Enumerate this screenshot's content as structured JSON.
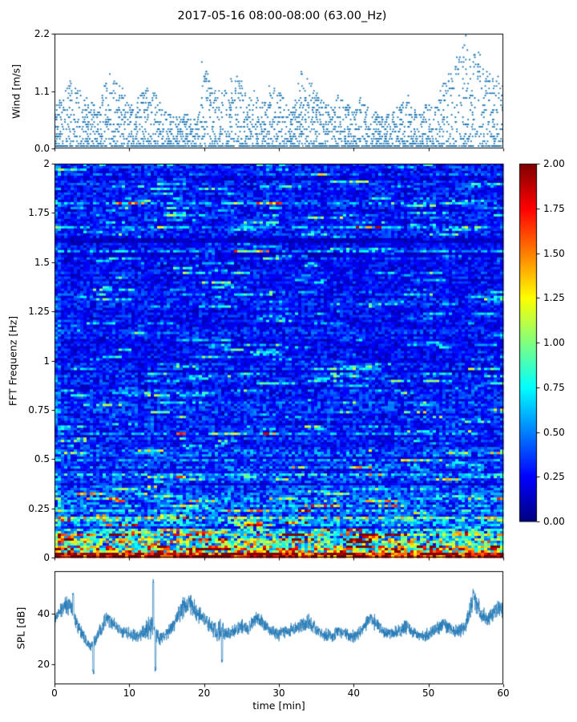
{
  "title": "2017-05-16 08:00-08:00 (63.00_Hz)",
  "accent_color": "#1f77b4",
  "chart_data": [
    {
      "type": "scatter",
      "name": "wind",
      "ylabel": "Wind [m/s]",
      "ylim": [
        0,
        2.2
      ],
      "yticks": [
        0,
        1.1,
        2.2
      ],
      "ytick_labels": [
        "0.0",
        "1.1",
        "2.2"
      ],
      "xlim": [
        0,
        60
      ],
      "marker_color": "#1f77b4",
      "n_points": 2600,
      "quantize_step": 0.046,
      "x_minutes": [
        0,
        1,
        2,
        3,
        4,
        5,
        6,
        7,
        8,
        9,
        10,
        11,
        12,
        13,
        14,
        15,
        16,
        17,
        18,
        19,
        20,
        21,
        22,
        23,
        24,
        25,
        26,
        27,
        28,
        29,
        30,
        31,
        32,
        33,
        34,
        35,
        36,
        37,
        38,
        39,
        40,
        41,
        42,
        43,
        44,
        45,
        46,
        47,
        48,
        49,
        50,
        51,
        52,
        53,
        54,
        55,
        56,
        57,
        58,
        59,
        60
      ],
      "envelope_max": [
        0.8,
        1.0,
        1.3,
        1.2,
        1.0,
        0.9,
        0.7,
        1.5,
        1.3,
        1.2,
        0.8,
        0.9,
        1.3,
        1.2,
        0.9,
        0.7,
        0.6,
        0.6,
        0.7,
        0.6,
        1.7,
        1.3,
        1.2,
        1.1,
        1.4,
        1.3,
        1.0,
        1.1,
        0.9,
        1.2,
        1.1,
        0.9,
        0.8,
        1.5,
        1.3,
        1.1,
        0.9,
        0.8,
        1.1,
        0.9,
        0.7,
        1.0,
        0.8,
        0.7,
        0.6,
        0.7,
        0.8,
        1.1,
        0.8,
        0.7,
        0.9,
        0.8,
        1.3,
        1.6,
        1.9,
        2.2,
        2.0,
        1.8,
        1.6,
        1.4,
        1.2
      ]
    },
    {
      "type": "heatmap",
      "name": "spectrogram",
      "ylabel": "FFT Frequenz [Hz]",
      "ylim": [
        0,
        2
      ],
      "yticks": [
        0,
        0.25,
        0.5,
        0.75,
        1,
        1.25,
        1.5,
        1.75,
        2
      ],
      "ytick_labels": [
        "0",
        "0.25",
        "0.5",
        "0.75",
        "1",
        "1.25",
        "1.5",
        "1.75",
        "2"
      ],
      "xlim": [
        0,
        60
      ],
      "colormap": "jet",
      "clim": [
        0,
        2
      ],
      "colorbar_ticks": [
        0,
        0.25,
        0.5,
        0.75,
        1,
        1.25,
        1.5,
        1.75,
        2
      ],
      "colorbar_tick_labels": [
        "0.00",
        "0.25",
        "0.50",
        "0.75",
        "1.00",
        "1.25",
        "1.50",
        "1.75",
        "2.00"
      ],
      "freq_profile": {
        "breaks": [
          0,
          0.03,
          0.06,
          0.1,
          0.15,
          0.25,
          0.4,
          0.55,
          1.0,
          2.01
        ],
        "means": [
          1.7,
          1.25,
          0.9,
          0.65,
          0.5,
          0.42,
          0.35,
          0.28,
          0.25
        ]
      },
      "grid": {
        "rows": 164,
        "cols": 140
      },
      "streaks": {
        "chance": 0.02,
        "min_len": 3,
        "max_len": 14,
        "boost_min": 1.5,
        "boost_max": 2.6
      },
      "seed": 42
    },
    {
      "type": "line",
      "name": "spl",
      "ylabel": "SPL [dB]",
      "xlabel": "time [min]",
      "ylim": [
        12,
        57
      ],
      "yticks": [
        20,
        40
      ],
      "ytick_labels": [
        "20",
        "40"
      ],
      "xticks": [
        0,
        10,
        20,
        30,
        40,
        50,
        60
      ],
      "xtick_labels": [
        "0",
        "10",
        "20",
        "30",
        "40",
        "50",
        "60"
      ],
      "line_color": "#1f77b4",
      "x_minutes": [
        0,
        1,
        2,
        3,
        4,
        5,
        6,
        7,
        8,
        9,
        10,
        11,
        12,
        13,
        14,
        15,
        16,
        17,
        18,
        19,
        20,
        21,
        22,
        23,
        24,
        25,
        26,
        27,
        28,
        29,
        30,
        31,
        32,
        33,
        34,
        35,
        36,
        37,
        38,
        39,
        40,
        41,
        42,
        43,
        44,
        45,
        46,
        47,
        48,
        49,
        50,
        51,
        52,
        53,
        54,
        55,
        56,
        57,
        58,
        59,
        60
      ],
      "y_mean": [
        38,
        42,
        44,
        36,
        30,
        27,
        33,
        38,
        36,
        33,
        32,
        31,
        33,
        35,
        30,
        32,
        36,
        42,
        44,
        41,
        38,
        35,
        33,
        32,
        33,
        35,
        34,
        39,
        36,
        33,
        32,
        33,
        34,
        35,
        37,
        34,
        32,
        31,
        33,
        32,
        31,
        33,
        38,
        36,
        33,
        32,
        33,
        35,
        33,
        31,
        32,
        34,
        36,
        34,
        33,
        35,
        47,
        40,
        38,
        41,
        43
      ],
      "y_spread": [
        3,
        3.5,
        5,
        3.5,
        3,
        3,
        3,
        3.5,
        3,
        3,
        3,
        3,
        3,
        8,
        3,
        3,
        3.5,
        5,
        5,
        4.5,
        4,
        3.5,
        6,
        3,
        3,
        3.5,
        3,
        4,
        3.5,
        3,
        3,
        3,
        3,
        3.5,
        3.5,
        3,
        3,
        3,
        3,
        3,
        3,
        3,
        4,
        3.5,
        3,
        3,
        3,
        3.5,
        3,
        3,
        3,
        3,
        3.5,
        3,
        3,
        3.5,
        6,
        4,
        3.5,
        4,
        4.5
      ],
      "spikes": [
        {
          "t": 2.5,
          "y": 48
        },
        {
          "t": 5.2,
          "y": 17
        },
        {
          "t": 13.2,
          "y": 53
        },
        {
          "t": 13.5,
          "y": 18
        },
        {
          "t": 22.4,
          "y": 21
        },
        {
          "t": 56.0,
          "y": 49
        }
      ]
    }
  ]
}
